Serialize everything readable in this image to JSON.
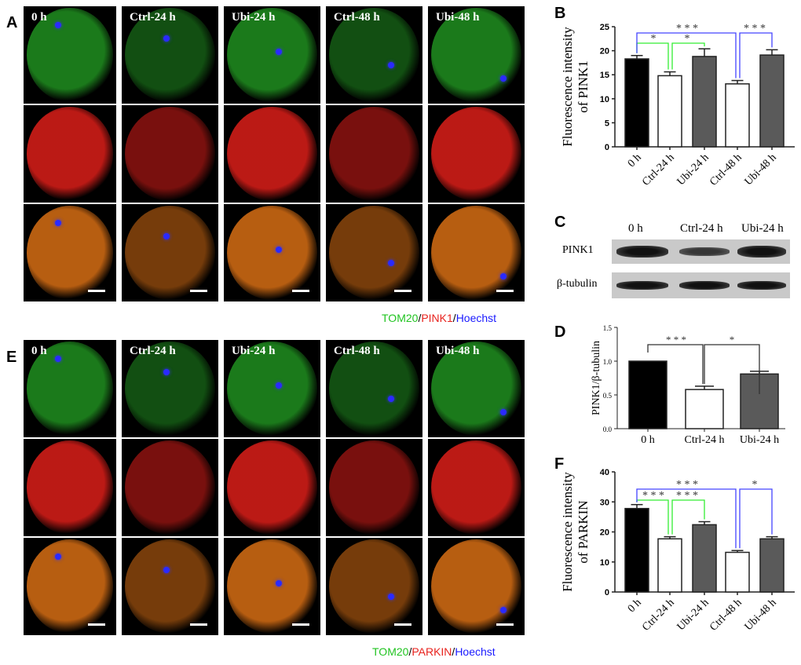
{
  "panel_labels": {
    "a": "A",
    "b": "B",
    "c": "C",
    "d": "D",
    "e": "E",
    "f": "F"
  },
  "conditions": [
    "0 h",
    "Ctrl-24 h",
    "Ubi-24 h",
    "Ctrl-48 h",
    "Ubi-48 h"
  ],
  "panel_a": {
    "legend": {
      "tom20": "TOM20",
      "sep1": "/",
      "pink1": "PINK1",
      "sep2": "/",
      "hoechst": "Hoechst"
    },
    "rows": [
      "TOM20",
      "PINK1",
      "merge"
    ]
  },
  "panel_e": {
    "legend": {
      "tom20": "TOM20",
      "sep1": "/",
      "parkin": "PARKIN",
      "sep2": "/",
      "hoechst": "Hoechst"
    },
    "rows": [
      "TOM20",
      "PARKIN",
      "merge"
    ]
  },
  "panel_c": {
    "lanes": [
      "0 h",
      "Ctrl-24 h",
      "Ubi-24 h"
    ],
    "rows": [
      "PINK1",
      "β-tubulin"
    ]
  },
  "colors": {
    "green": "#22c422",
    "red": "#e8231e",
    "blue": "#1a1aff",
    "sig_green": "#33ee33",
    "sig_blue": "#4444ff",
    "bar_black": "#000000",
    "bar_white": "#ffffff",
    "bar_gray": "#5a5a5a"
  },
  "chart_data": [
    {
      "id": "B",
      "type": "bar",
      "ylabel": "Fluorescence intensity of PINK1",
      "categories": [
        "0 h",
        "Ctrl-24 h",
        "Ubi-24 h",
        "Ctrl-48 h",
        "Ubi-48 h"
      ],
      "values": [
        18.3,
        14.8,
        18.8,
        13.1,
        19.1
      ],
      "errors": [
        0.7,
        0.8,
        1.6,
        0.7,
        1.1
      ],
      "ylim": [
        0,
        25
      ],
      "yticks": [
        "0",
        "5",
        "10",
        "15",
        "20",
        "25"
      ],
      "significance": [
        {
          "from": 0,
          "to": 1,
          "label": "*",
          "color": "green"
        },
        {
          "from": 1,
          "to": 2,
          "label": "*",
          "color": "green"
        },
        {
          "from": 0,
          "to": 3,
          "label": "***",
          "color": "blue"
        },
        {
          "from": 3,
          "to": 4,
          "label": "***",
          "color": "blue"
        }
      ]
    },
    {
      "id": "D",
      "type": "bar",
      "ylabel": "PINK1/β-tubulin",
      "categories": [
        "0 h",
        "Ctrl-24 h",
        "Ubi-24 h"
      ],
      "values": [
        1.0,
        0.58,
        0.81
      ],
      "errors": [
        0,
        0.05,
        0.04
      ],
      "ylim": [
        0,
        1.5
      ],
      "yticks": [
        "0.0",
        "0.5",
        "1.0",
        "1.5"
      ],
      "significance": [
        {
          "from": 0,
          "to": 1,
          "label": "***",
          "color": "black"
        },
        {
          "from": 1,
          "to": 2,
          "label": "*",
          "color": "black"
        }
      ]
    },
    {
      "id": "F",
      "type": "bar",
      "ylabel": "Fluorescence intensity of PARKIN",
      "categories": [
        "0 h",
        "Ctrl-24 h",
        "Ubi-24 h",
        "Ctrl-48 h",
        "Ubi-48 h"
      ],
      "values": [
        27.8,
        17.7,
        22.4,
        13.2,
        17.7
      ],
      "errors": [
        1.3,
        0.7,
        1.0,
        0.6,
        0.7
      ],
      "ylim": [
        0,
        40
      ],
      "yticks": [
        "0",
        "10",
        "20",
        "30",
        "40"
      ],
      "significance": [
        {
          "from": 0,
          "to": 1,
          "label": "***",
          "color": "green"
        },
        {
          "from": 1,
          "to": 2,
          "label": "***",
          "color": "green"
        },
        {
          "from": 0,
          "to": 3,
          "label": "***",
          "color": "blue"
        },
        {
          "from": 3,
          "to": 4,
          "label": "*",
          "color": "blue"
        }
      ]
    }
  ]
}
